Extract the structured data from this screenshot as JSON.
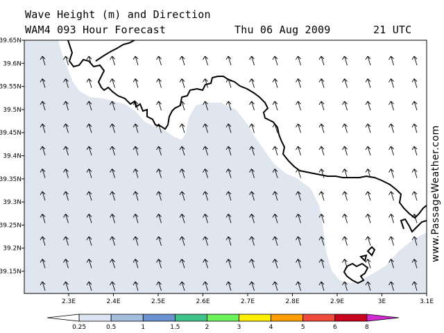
{
  "header": {
    "title": "Wave Height (m) and Direction",
    "model_line": "WAM4 093 Hour Forecast",
    "date": "Thu 06 Aug 2009",
    "time": "21 UTC"
  },
  "watermark": "www.PassageWeather.com",
  "map": {
    "lat_labels": [
      "39.65N",
      "39.6N",
      "39.55N",
      "39.5N",
      "39.45N",
      "39.4N",
      "39.35N",
      "39.3N",
      "39.25N",
      "39.2N",
      "39.15N"
    ],
    "lon_labels": [
      "2.3E",
      "2.4E",
      "2.5E",
      "2.6E",
      "2.7E",
      "2.8E",
      "2.9E",
      "3E",
      "3.1E"
    ],
    "lat_range": [
      39.1,
      39.65
    ],
    "lon_range": [
      2.2,
      3.1
    ],
    "wave_field_color": "#dfe6f0",
    "land_color": "#ffffff",
    "coast_color": "#000000",
    "arrow_direction": "north-northwest"
  },
  "colorbar": {
    "labels": [
      "0.25",
      "0.5",
      "1",
      "1.5",
      "2",
      "3",
      "4",
      "5",
      "6",
      "8"
    ],
    "colors": [
      "#ffffff",
      "#dce5f1",
      "#a4bfde",
      "#6a92d2",
      "#3fc38a",
      "#6cf35a",
      "#ffee00",
      "#ff9e00",
      "#f24a3a",
      "#c8001c",
      "#d42ad3"
    ]
  }
}
